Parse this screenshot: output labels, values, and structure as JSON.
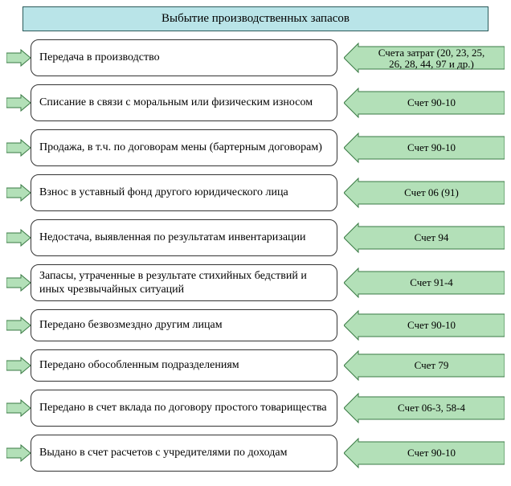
{
  "title": "Выбытие производственных запасов",
  "title_bg": "#b9e4e8",
  "title_border": "#2b5a5a",
  "desc_border": "#333333",
  "desc_radius": 10,
  "arrow_fill": "#b3e0b8",
  "arrow_stroke": "#3a7a44",
  "left_arrow_fill": "#b3e0b8",
  "left_arrow_stroke": "#3a7a44",
  "font_family": "Times New Roman",
  "rows": [
    {
      "desc": "Передача в производство",
      "account_lines": [
        "Счета затрат (20, 23, 25,",
        "26, 28, 44, 97 и др.)"
      ],
      "tall": true
    },
    {
      "desc": "Списание в связи с моральным или физическим износом",
      "account_lines": [
        "Счет 90-10"
      ],
      "tall": true
    },
    {
      "desc": "Продажа, в т.ч. по договорам мены (бартерным договорам)",
      "account_lines": [
        "Счет 90-10"
      ],
      "tall": true
    },
    {
      "desc": "Взнос в уставный фонд другого юридического лица",
      "account_lines": [
        "Счет 06 (91)"
      ],
      "tall": true
    },
    {
      "desc": "Недостача, выявленная по результатам инвен­таризации",
      "account_lines": [
        "Счет 94"
      ],
      "tall": true
    },
    {
      "desc": "Запасы, утраченные в результате стихийных бедствий и иных чрезвычайных ситуаций",
      "account_lines": [
        "Счет 91-4"
      ],
      "tall": true
    },
    {
      "desc": "Передано безвозмездно другим лицам",
      "account_lines": [
        "Счет 90-10"
      ],
      "tall": false
    },
    {
      "desc": "Передано обособленным подразделениям",
      "account_lines": [
        "Счет 79"
      ],
      "tall": false
    },
    {
      "desc": "Передано в счет вклада по договору простого товарищества",
      "account_lines": [
        "Счет 06-3, 58-4"
      ],
      "tall": true
    },
    {
      "desc": "Выдано в счет расчетов с учредителями по до­ходам",
      "account_lines": [
        "Счет 90-10"
      ],
      "tall": true
    }
  ]
}
